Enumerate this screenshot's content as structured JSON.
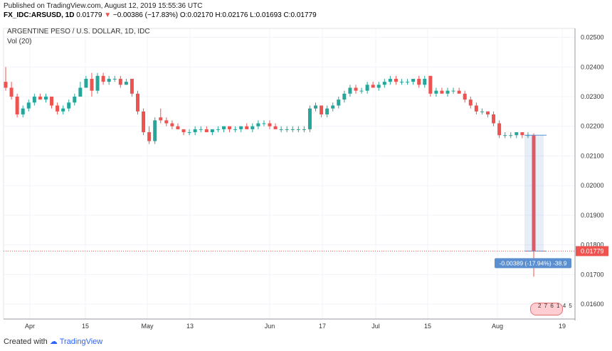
{
  "header": {
    "published": "Published on TradingView.com, August 12, 2019 15:55:36 UTC",
    "symbol": "FX_IDC:ARSUSD, 1D",
    "last": "0.01779",
    "change_arrow": "▼",
    "change": "−0.00386 (−17.83%)",
    "ohlc": "O:0.02170 H:0.02176 L:0.01693 C:0.01779"
  },
  "chart_title": "ARGENTINE PESO / U.S. DOLLAR, 1D, IDC",
  "volume_label": "Vol (20)",
  "price_tag": "0.01779",
  "measure_label": "-0.00389 (-17.94%) -38.9",
  "events_badge": "2 7 6 1 4 5",
  "footer": {
    "prefix": "Created with",
    "brand": "TradingView"
  },
  "colors": {
    "up": "#26a69a",
    "down": "#ef5350",
    "price_tag": "#ef5350",
    "measure": "#5b8fd0"
  },
  "chart_data": {
    "type": "candlestick",
    "title": "ARGENTINE PESO / U.S. DOLLAR, 1D, IDC",
    "y_ticks": [
      "0.01600",
      "0.01700",
      "0.01800",
      "0.01900",
      "0.02000",
      "0.02100",
      "0.02200",
      "0.02300",
      "0.02400",
      "0.02500"
    ],
    "ylim": [
      0.0155,
      0.0253
    ],
    "x_ticks": [
      "Apr",
      "15",
      "May",
      "13",
      "Jun",
      "17",
      "Jul",
      "15",
      "Aug",
      "19"
    ],
    "grid": true,
    "candles": [
      {
        "o": 0.0235,
        "h": 0.024,
        "l": 0.0232,
        "c": 0.0233
      },
      {
        "o": 0.0233,
        "h": 0.0235,
        "l": 0.0229,
        "c": 0.023
      },
      {
        "o": 0.023,
        "h": 0.0231,
        "l": 0.0223,
        "c": 0.0224
      },
      {
        "o": 0.0224,
        "h": 0.0227,
        "l": 0.0223,
        "c": 0.0226
      },
      {
        "o": 0.0226,
        "h": 0.0229,
        "l": 0.0225,
        "c": 0.0228
      },
      {
        "o": 0.0228,
        "h": 0.0231,
        "l": 0.0227,
        "c": 0.023
      },
      {
        "o": 0.023,
        "h": 0.0231,
        "l": 0.0229,
        "c": 0.0229
      },
      {
        "o": 0.0229,
        "h": 0.0231,
        "l": 0.0228,
        "c": 0.023
      },
      {
        "o": 0.023,
        "h": 0.023,
        "l": 0.0226,
        "c": 0.0227
      },
      {
        "o": 0.0227,
        "h": 0.0228,
        "l": 0.0224,
        "c": 0.0225
      },
      {
        "o": 0.0225,
        "h": 0.0227,
        "l": 0.0224,
        "c": 0.0226
      },
      {
        "o": 0.0226,
        "h": 0.0229,
        "l": 0.0225,
        "c": 0.0228
      },
      {
        "o": 0.0228,
        "h": 0.0231,
        "l": 0.0227,
        "c": 0.023
      },
      {
        "o": 0.023,
        "h": 0.0235,
        "l": 0.023,
        "c": 0.0233
      },
      {
        "o": 0.0233,
        "h": 0.0237,
        "l": 0.0233,
        "c": 0.0236
      },
      {
        "o": 0.0236,
        "h": 0.0238,
        "l": 0.023,
        "c": 0.0232
      },
      {
        "o": 0.0232,
        "h": 0.0238,
        "l": 0.0231,
        "c": 0.0237
      },
      {
        "o": 0.0237,
        "h": 0.0238,
        "l": 0.0234,
        "c": 0.0235
      },
      {
        "o": 0.0235,
        "h": 0.0237,
        "l": 0.0234,
        "c": 0.0236
      },
      {
        "o": 0.0236,
        "h": 0.0237,
        "l": 0.0235,
        "c": 0.0236
      },
      {
        "o": 0.0236,
        "h": 0.0237,
        "l": 0.0233,
        "c": 0.0234
      },
      {
        "o": 0.0234,
        "h": 0.0236,
        "l": 0.0234,
        "c": 0.0235
      },
      {
        "o": 0.0236,
        "h": 0.0236,
        "l": 0.023,
        "c": 0.0231
      },
      {
        "o": 0.0231,
        "h": 0.0232,
        "l": 0.0224,
        "c": 0.0225
      },
      {
        "o": 0.0225,
        "h": 0.0226,
        "l": 0.0217,
        "c": 0.0218
      },
      {
        "o": 0.0218,
        "h": 0.022,
        "l": 0.0214,
        "c": 0.0215
      },
      {
        "o": 0.0215,
        "h": 0.0223,
        "l": 0.0214,
        "c": 0.0222
      },
      {
        "o": 0.0223,
        "h": 0.0226,
        "l": 0.0221,
        "c": 0.0222
      },
      {
        "o": 0.0222,
        "h": 0.0223,
        "l": 0.022,
        "c": 0.0221
      },
      {
        "o": 0.0221,
        "h": 0.0222,
        "l": 0.0219,
        "c": 0.022
      },
      {
        "o": 0.022,
        "h": 0.0221,
        "l": 0.0219,
        "c": 0.0219
      },
      {
        "o": 0.0219,
        "h": 0.0219,
        "l": 0.0217,
        "c": 0.0218
      },
      {
        "o": 0.0218,
        "h": 0.0219,
        "l": 0.0217,
        "c": 0.0218
      },
      {
        "o": 0.0218,
        "h": 0.022,
        "l": 0.0217,
        "c": 0.0219
      },
      {
        "o": 0.0219,
        "h": 0.022,
        "l": 0.0218,
        "c": 0.0219
      },
      {
        "o": 0.0219,
        "h": 0.022,
        "l": 0.0218,
        "c": 0.0218
      },
      {
        "o": 0.0218,
        "h": 0.0219,
        "l": 0.0217,
        "c": 0.0219
      },
      {
        "o": 0.0219,
        "h": 0.022,
        "l": 0.0218,
        "c": 0.0219
      },
      {
        "o": 0.0219,
        "h": 0.022,
        "l": 0.0218,
        "c": 0.022
      },
      {
        "o": 0.022,
        "h": 0.022,
        "l": 0.0218,
        "c": 0.0219
      },
      {
        "o": 0.0219,
        "h": 0.022,
        "l": 0.0218,
        "c": 0.0219
      },
      {
        "o": 0.0219,
        "h": 0.022,
        "l": 0.0218,
        "c": 0.022
      },
      {
        "o": 0.022,
        "h": 0.0221,
        "l": 0.0219,
        "c": 0.0219
      },
      {
        "o": 0.0219,
        "h": 0.0221,
        "l": 0.0218,
        "c": 0.022
      },
      {
        "o": 0.022,
        "h": 0.0222,
        "l": 0.0219,
        "c": 0.0221
      },
      {
        "o": 0.0221,
        "h": 0.0222,
        "l": 0.022,
        "c": 0.0221
      },
      {
        "o": 0.0221,
        "h": 0.0222,
        "l": 0.0219,
        "c": 0.022
      },
      {
        "o": 0.022,
        "h": 0.0221,
        "l": 0.0219,
        "c": 0.0219
      },
      {
        "o": 0.0219,
        "h": 0.022,
        "l": 0.0218,
        "c": 0.0219
      },
      {
        "o": 0.0219,
        "h": 0.022,
        "l": 0.0218,
        "c": 0.0219
      },
      {
        "o": 0.0219,
        "h": 0.022,
        "l": 0.0218,
        "c": 0.0219
      },
      {
        "o": 0.0219,
        "h": 0.022,
        "l": 0.0218,
        "c": 0.0219
      },
      {
        "o": 0.0219,
        "h": 0.022,
        "l": 0.0218,
        "c": 0.0219
      },
      {
        "o": 0.0219,
        "h": 0.0227,
        "l": 0.0218,
        "c": 0.0226
      },
      {
        "o": 0.0226,
        "h": 0.0228,
        "l": 0.0225,
        "c": 0.0227
      },
      {
        "o": 0.0227,
        "h": 0.0227,
        "l": 0.0223,
        "c": 0.0224
      },
      {
        "o": 0.0224,
        "h": 0.0227,
        "l": 0.0223,
        "c": 0.0226
      },
      {
        "o": 0.0226,
        "h": 0.0228,
        "l": 0.0225,
        "c": 0.0227
      },
      {
        "o": 0.0227,
        "h": 0.023,
        "l": 0.0226,
        "c": 0.0229
      },
      {
        "o": 0.0229,
        "h": 0.0232,
        "l": 0.0228,
        "c": 0.0231
      },
      {
        "o": 0.0231,
        "h": 0.0234,
        "l": 0.023,
        "c": 0.0233
      },
      {
        "o": 0.0233,
        "h": 0.0234,
        "l": 0.0231,
        "c": 0.0232
      },
      {
        "o": 0.0232,
        "h": 0.0233,
        "l": 0.0231,
        "c": 0.0232
      },
      {
        "o": 0.0232,
        "h": 0.0235,
        "l": 0.0231,
        "c": 0.0234
      },
      {
        "o": 0.0234,
        "h": 0.0235,
        "l": 0.0233,
        "c": 0.0233
      },
      {
        "o": 0.0233,
        "h": 0.0235,
        "l": 0.0232,
        "c": 0.0234
      },
      {
        "o": 0.0234,
        "h": 0.0236,
        "l": 0.0233,
        "c": 0.0235
      },
      {
        "o": 0.0235,
        "h": 0.0237,
        "l": 0.0234,
        "c": 0.0236
      },
      {
        "o": 0.0236,
        "h": 0.0237,
        "l": 0.0234,
        "c": 0.0235
      },
      {
        "o": 0.0235,
        "h": 0.0236,
        "l": 0.0234,
        "c": 0.0235
      },
      {
        "o": 0.0235,
        "h": 0.0236,
        "l": 0.0234,
        "c": 0.0235
      },
      {
        "o": 0.0235,
        "h": 0.0236,
        "l": 0.0234,
        "c": 0.0236
      },
      {
        "o": 0.0236,
        "h": 0.0237,
        "l": 0.0233,
        "c": 0.0234
      },
      {
        "o": 0.0234,
        "h": 0.0237,
        "l": 0.0233,
        "c": 0.0236
      },
      {
        "o": 0.0237,
        "h": 0.0237,
        "l": 0.023,
        "c": 0.0231
      },
      {
        "o": 0.0231,
        "h": 0.0233,
        "l": 0.023,
        "c": 0.0232
      },
      {
        "o": 0.0232,
        "h": 0.0233,
        "l": 0.0231,
        "c": 0.0231
      },
      {
        "o": 0.0231,
        "h": 0.0233,
        "l": 0.023,
        "c": 0.0232
      },
      {
        "o": 0.0232,
        "h": 0.0233,
        "l": 0.0231,
        "c": 0.0232
      },
      {
        "o": 0.0232,
        "h": 0.0233,
        "l": 0.0231,
        "c": 0.0231
      },
      {
        "o": 0.0231,
        "h": 0.0232,
        "l": 0.0228,
        "c": 0.0229
      },
      {
        "o": 0.0229,
        "h": 0.023,
        "l": 0.0226,
        "c": 0.0227
      },
      {
        "o": 0.0227,
        "h": 0.0228,
        "l": 0.0224,
        "c": 0.0225
      },
      {
        "o": 0.0225,
        "h": 0.0226,
        "l": 0.0224,
        "c": 0.0225
      },
      {
        "o": 0.0225,
        "h": 0.0225,
        "l": 0.0223,
        "c": 0.0224
      },
      {
        "o": 0.0224,
        "h": 0.0225,
        "l": 0.022,
        "c": 0.0221
      },
      {
        "o": 0.0221,
        "h": 0.0222,
        "l": 0.0216,
        "c": 0.0217
      },
      {
        "o": 0.0217,
        "h": 0.0218,
        "l": 0.0216,
        "c": 0.0217
      },
      {
        "o": 0.0217,
        "h": 0.0218,
        "l": 0.0216,
        "c": 0.0217
      },
      {
        "o": 0.0217,
        "h": 0.0218,
        "l": 0.0216,
        "c": 0.0218
      },
      {
        "o": 0.0218,
        "h": 0.0218,
        "l": 0.0216,
        "c": 0.0217
      },
      {
        "o": 0.0217,
        "h": 0.0218,
        "l": 0.0216,
        "c": 0.0217
      },
      {
        "o": 0.0217,
        "h": 0.02176,
        "l": 0.01693,
        "c": 0.01779
      }
    ]
  }
}
